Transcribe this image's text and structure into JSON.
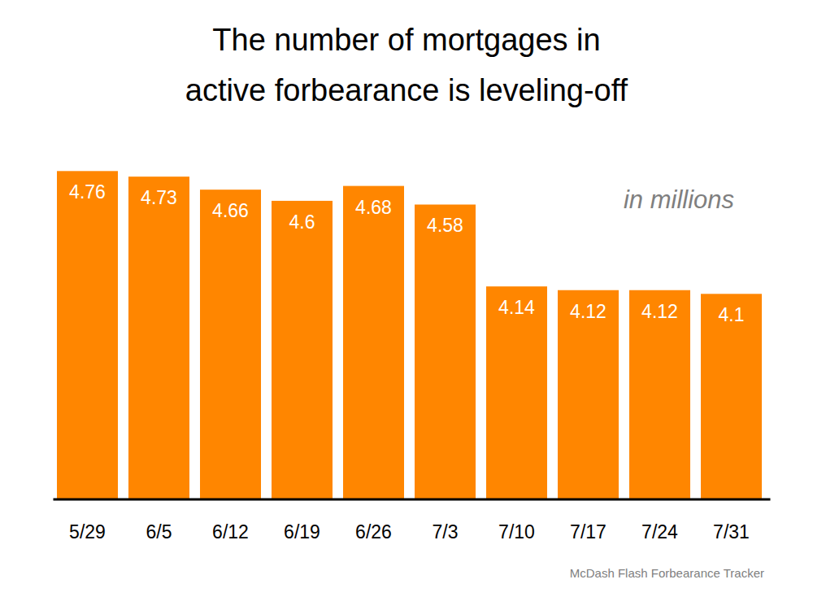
{
  "chart_data": {
    "type": "bar",
    "title": "The number of mortgages in\nactive forbearance is leveling-off",
    "annotation": "in millions",
    "source": "McDash Flash Forbearance Tracker",
    "categories": [
      "5/29",
      "6/5",
      "6/12",
      "6/19",
      "6/26",
      "7/3",
      "7/10",
      "7/17",
      "7/24",
      "7/31"
    ],
    "values": [
      4.76,
      4.73,
      4.66,
      4.6,
      4.68,
      4.58,
      4.14,
      4.12,
      4.12,
      4.1
    ],
    "color": "#ff8600",
    "ylim": [
      3,
      5
    ],
    "grid": false,
    "data_labels": true,
    "tick_labels": "x"
  }
}
